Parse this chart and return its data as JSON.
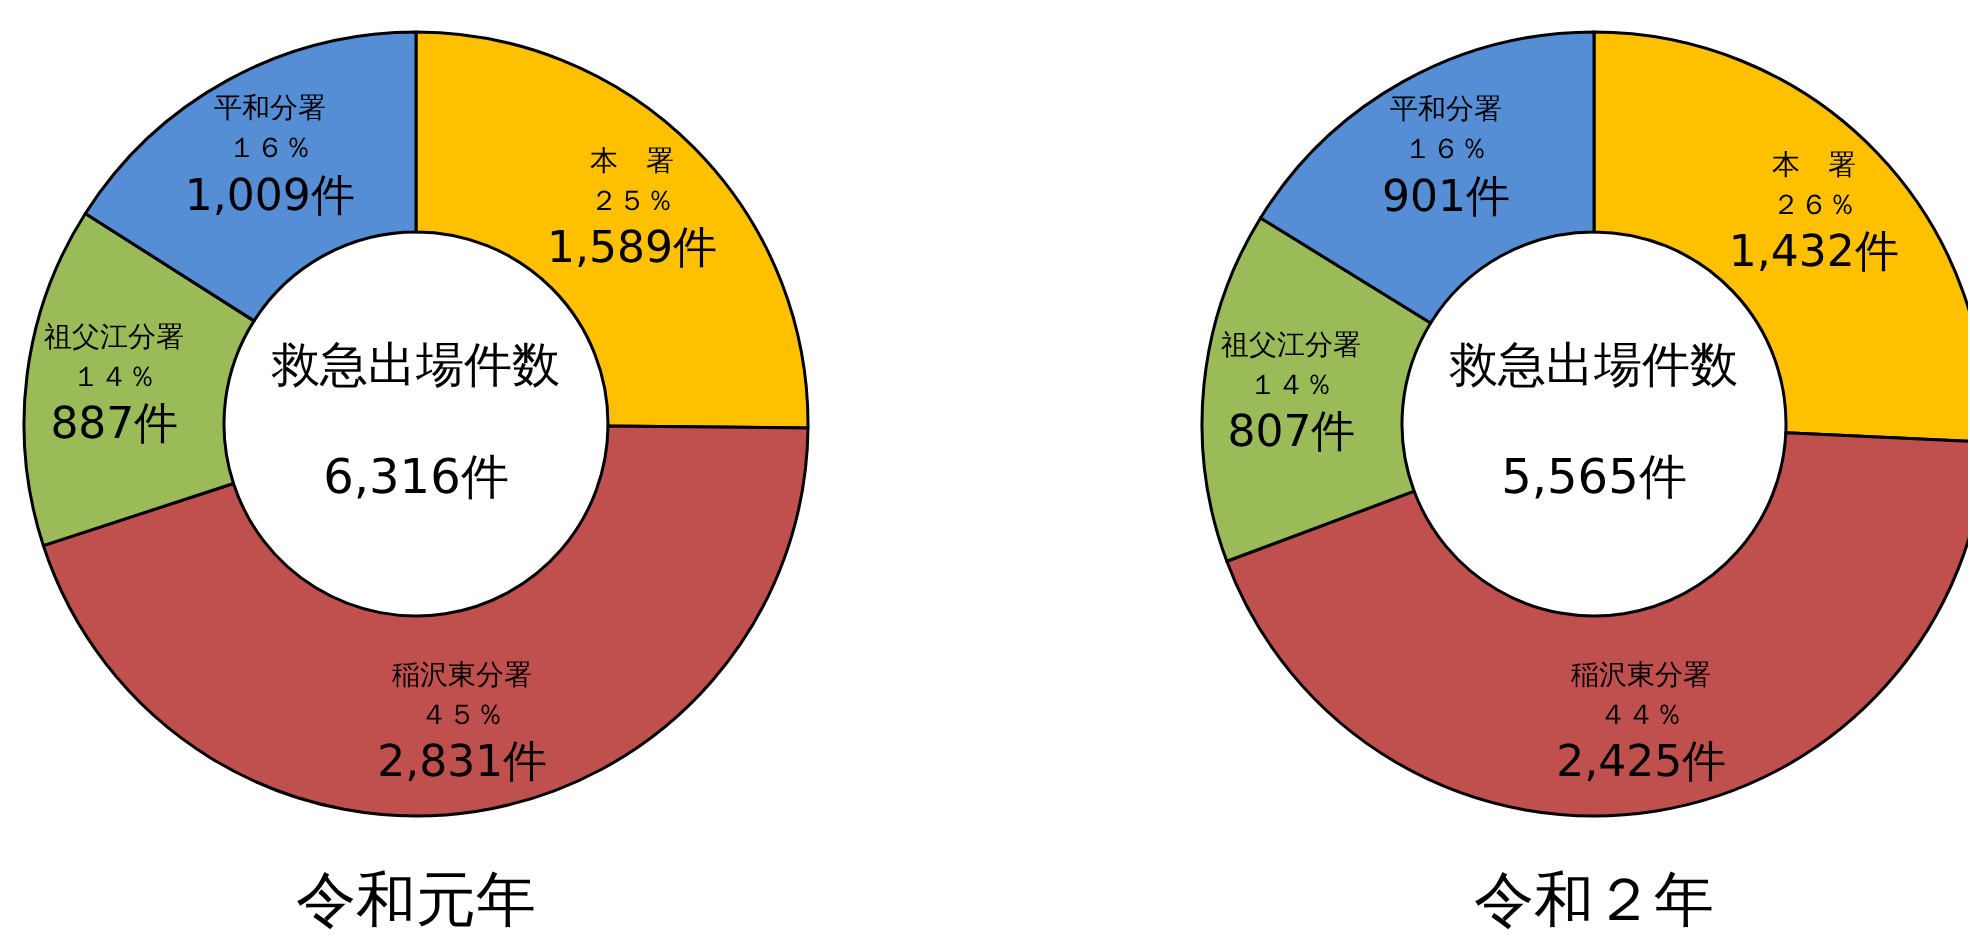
{
  "chart_data": [
    {
      "type": "donut",
      "title": "令和元年",
      "categories": [
        "本　署",
        "稲沢東分署",
        "祖父江分署",
        "平和分署"
      ],
      "values": [
        1589,
        2831,
        887,
        1009
      ],
      "value_labels": [
        "1,589件",
        "2,831件",
        "887件",
        "1,009件"
      ],
      "colors": [
        "#ffc000",
        "#c0504d",
        "#9bbb59",
        "#558ed5"
      ],
      "annotations": [
        "救急出場件数",
        "6,316件",
        {
          "text": "２５％",
          "x": "本　署"
        },
        {
          "text": "４５％",
          "x": "稲沢東分署"
        },
        {
          "text": "１４％",
          "x": "祖父江分署"
        },
        {
          "text": "１６％",
          "x": "平和分署"
        }
      ]
    },
    {
      "type": "donut",
      "title": "令和２年",
      "categories": [
        "本　署",
        "稲沢東分署",
        "祖父江分署",
        "平和分署"
      ],
      "values": [
        1432,
        2425,
        807,
        901
      ],
      "value_labels": [
        "1,432件",
        "2,425件",
        "807件",
        "901件"
      ],
      "colors": [
        "#ffc000",
        "#c0504d",
        "#9bbb59",
        "#558ed5"
      ],
      "annotations": [
        "救急出場件数",
        "5,565件",
        {
          "text": "２６％",
          "x": "本　署"
        },
        {
          "text": "４４％",
          "x": "稲沢東分署"
        },
        {
          "text": "１４％",
          "x": "祖父江分署"
        },
        {
          "text": "１６％",
          "x": "平和分署"
        }
      ]
    }
  ]
}
